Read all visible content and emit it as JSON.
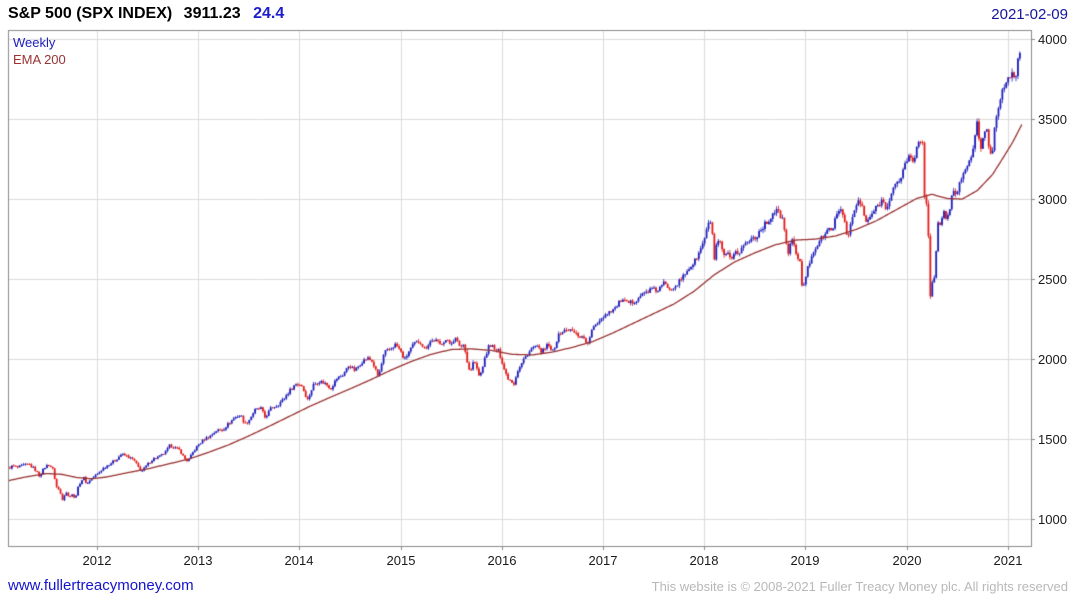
{
  "header": {
    "instrument": "S&P 500 (SPX INDEX)",
    "last": "3911.23",
    "change": "24.4",
    "date": "2021-02-09"
  },
  "legend": {
    "series1": "Weekly",
    "series2": "EMA 200"
  },
  "footer": {
    "site_link": "www.fullertreacymoney.com",
    "copyright": "This website is © 2008-2021 Fuller Treacy Money plc. All rights reserved"
  },
  "ui_colors": {
    "title": "#000000",
    "change": "#1d1dcf",
    "date": "#15159c",
    "link": "#1414cc",
    "copyright": "#b8b8b8",
    "tick_label": "#1a1a1a"
  },
  "chart_data": {
    "type": "candlestick",
    "title": "S&P 500 (SPX INDEX)",
    "interval": "Weekly",
    "overlay": "EMA 200",
    "last": 3911.23,
    "change": 24.4,
    "as_of": "2021-02-09",
    "legend": [
      "Weekly",
      "EMA 200"
    ],
    "legend_position": "top-left-inside",
    "grid": true,
    "x_ticks": [
      2012,
      2013,
      2014,
      2015,
      2016,
      2017,
      2018,
      2019,
      2020,
      2021
    ],
    "y_ticks": [
      1000,
      1500,
      2000,
      2500,
      3000,
      3500,
      4000
    ],
    "xlim": [
      2011.12,
      2021.23
    ],
    "ylim": [
      830,
      4055
    ],
    "candles_per_year": 52,
    "colors": {
      "up": "#2020bb",
      "down": "#e11b1b",
      "ema": "#993333",
      "grid": "#dcdcdc",
      "border": "#8a8a8a",
      "background": "#ffffff"
    },
    "price_anchors": [
      [
        2011.12,
        1315
      ],
      [
        2011.17,
        1332
      ],
      [
        2011.22,
        1320
      ],
      [
        2011.27,
        1335
      ],
      [
        2011.33,
        1340
      ],
      [
        2011.38,
        1312
      ],
      [
        2011.43,
        1268
      ],
      [
        2011.48,
        1320
      ],
      [
        2011.52,
        1340
      ],
      [
        2011.56,
        1316
      ],
      [
        2011.6,
        1200
      ],
      [
        2011.63,
        1175
      ],
      [
        2011.66,
        1120
      ],
      [
        2011.69,
        1175
      ],
      [
        2011.72,
        1135
      ],
      [
        2011.75,
        1160
      ],
      [
        2011.78,
        1122
      ],
      [
        2011.81,
        1190
      ],
      [
        2011.84,
        1238
      ],
      [
        2011.87,
        1255
      ],
      [
        2011.9,
        1216
      ],
      [
        2011.93,
        1244
      ],
      [
        2011.96,
        1258
      ],
      [
        2012.0,
        1278
      ],
      [
        2012.06,
        1315
      ],
      [
        2012.12,
        1342
      ],
      [
        2012.18,
        1365
      ],
      [
        2012.24,
        1404
      ],
      [
        2012.3,
        1390
      ],
      [
        2012.36,
        1370
      ],
      [
        2012.4,
        1330
      ],
      [
        2012.44,
        1295
      ],
      [
        2012.48,
        1325
      ],
      [
        2012.52,
        1355
      ],
      [
        2012.56,
        1376
      ],
      [
        2012.62,
        1390
      ],
      [
        2012.68,
        1418
      ],
      [
        2012.72,
        1460
      ],
      [
        2012.78,
        1440
      ],
      [
        2012.82,
        1428
      ],
      [
        2012.86,
        1380
      ],
      [
        2012.9,
        1360
      ],
      [
        2012.95,
        1418
      ],
      [
        2013.0,
        1462
      ],
      [
        2013.06,
        1498
      ],
      [
        2013.12,
        1518
      ],
      [
        2013.18,
        1552
      ],
      [
        2013.24,
        1556
      ],
      [
        2013.3,
        1595
      ],
      [
        2013.36,
        1633
      ],
      [
        2013.42,
        1650
      ],
      [
        2013.46,
        1592
      ],
      [
        2013.5,
        1615
      ],
      [
        2013.56,
        1680
      ],
      [
        2013.62,
        1690
      ],
      [
        2013.66,
        1632
      ],
      [
        2013.72,
        1692
      ],
      [
        2013.78,
        1710
      ],
      [
        2013.84,
        1745
      ],
      [
        2013.9,
        1798
      ],
      [
        2013.96,
        1842
      ],
      [
        2014.02,
        1838
      ],
      [
        2014.08,
        1742
      ],
      [
        2014.14,
        1840
      ],
      [
        2014.2,
        1860
      ],
      [
        2014.26,
        1845
      ],
      [
        2014.31,
        1815
      ],
      [
        2014.37,
        1878
      ],
      [
        2014.43,
        1900
      ],
      [
        2014.49,
        1960
      ],
      [
        2014.55,
        1925
      ],
      [
        2014.61,
        1978
      ],
      [
        2014.67,
        2005
      ],
      [
        2014.72,
        1982
      ],
      [
        2014.78,
        1885
      ],
      [
        2014.84,
        2040
      ],
      [
        2014.9,
        2063
      ],
      [
        2014.95,
        2090
      ],
      [
        2014.99,
        2058
      ],
      [
        2015.04,
        1994
      ],
      [
        2015.09,
        2055
      ],
      [
        2015.14,
        2097
      ],
      [
        2015.19,
        2110
      ],
      [
        2015.24,
        2060
      ],
      [
        2015.29,
        2108
      ],
      [
        2015.34,
        2118
      ],
      [
        2015.39,
        2090
      ],
      [
        2015.44,
        2120
      ],
      [
        2015.49,
        2095
      ],
      [
        2015.54,
        2128
      ],
      [
        2015.59,
        2076
      ],
      [
        2015.63,
        2092
      ],
      [
        2015.66,
        1972
      ],
      [
        2015.69,
        1913
      ],
      [
        2015.72,
        1988
      ],
      [
        2015.75,
        1948
      ],
      [
        2015.78,
        1880
      ],
      [
        2015.81,
        1952
      ],
      [
        2015.84,
        2015
      ],
      [
        2015.87,
        2077
      ],
      [
        2015.9,
        2089
      ],
      [
        2015.93,
        2048
      ],
      [
        2015.96,
        2060
      ],
      [
        2016.0,
        1990
      ],
      [
        2016.03,
        1922
      ],
      [
        2016.06,
        1880
      ],
      [
        2016.09,
        1865
      ],
      [
        2016.12,
        1845
      ],
      [
        2016.15,
        1918
      ],
      [
        2016.18,
        1950
      ],
      [
        2016.22,
        2000
      ],
      [
        2016.26,
        2035
      ],
      [
        2016.3,
        2066
      ],
      [
        2016.34,
        2080
      ],
      [
        2016.38,
        2048
      ],
      [
        2016.42,
        2052
      ],
      [
        2016.46,
        2096
      ],
      [
        2016.49,
        2037
      ],
      [
        2016.52,
        2070
      ],
      [
        2016.55,
        2130
      ],
      [
        2016.58,
        2165
      ],
      [
        2016.62,
        2175
      ],
      [
        2016.66,
        2184
      ],
      [
        2016.7,
        2170
      ],
      [
        2016.74,
        2152
      ],
      [
        2016.78,
        2140
      ],
      [
        2016.82,
        2128
      ],
      [
        2016.85,
        2085
      ],
      [
        2016.88,
        2165
      ],
      [
        2016.92,
        2205
      ],
      [
        2016.96,
        2240
      ],
      [
        2017.0,
        2265
      ],
      [
        2017.06,
        2295
      ],
      [
        2017.12,
        2316
      ],
      [
        2017.18,
        2368
      ],
      [
        2017.24,
        2345
      ],
      [
        2017.3,
        2355
      ],
      [
        2017.36,
        2390
      ],
      [
        2017.42,
        2415
      ],
      [
        2017.48,
        2435
      ],
      [
        2017.54,
        2425
      ],
      [
        2017.6,
        2472
      ],
      [
        2017.66,
        2440
      ],
      [
        2017.72,
        2460
      ],
      [
        2017.78,
        2500
      ],
      [
        2017.84,
        2560
      ],
      [
        2017.9,
        2600
      ],
      [
        2017.96,
        2675
      ],
      [
        2018.0,
        2745
      ],
      [
        2018.04,
        2835
      ],
      [
        2018.07,
        2870
      ],
      [
        2018.1,
        2620
      ],
      [
        2018.13,
        2735
      ],
      [
        2018.16,
        2715
      ],
      [
        2018.19,
        2645
      ],
      [
        2018.23,
        2655
      ],
      [
        2018.27,
        2605
      ],
      [
        2018.31,
        2670
      ],
      [
        2018.35,
        2665
      ],
      [
        2018.39,
        2715
      ],
      [
        2018.43,
        2725
      ],
      [
        2018.47,
        2755
      ],
      [
        2018.51,
        2760
      ],
      [
        2018.55,
        2800
      ],
      [
        2018.59,
        2835
      ],
      [
        2018.63,
        2855
      ],
      [
        2018.67,
        2900
      ],
      [
        2018.71,
        2930
      ],
      [
        2018.74,
        2905
      ],
      [
        2018.77,
        2885
      ],
      [
        2018.8,
        2770
      ],
      [
        2018.83,
        2660
      ],
      [
        2018.86,
        2735
      ],
      [
        2018.89,
        2725
      ],
      [
        2018.92,
        2630
      ],
      [
        2018.95,
        2595
      ],
      [
        2018.97,
        2415
      ],
      [
        2018.99,
        2485
      ],
      [
        2019.03,
        2580
      ],
      [
        2019.07,
        2665
      ],
      [
        2019.11,
        2705
      ],
      [
        2019.15,
        2745
      ],
      [
        2019.19,
        2775
      ],
      [
        2019.23,
        2805
      ],
      [
        2019.27,
        2825
      ],
      [
        2019.31,
        2890
      ],
      [
        2019.35,
        2940
      ],
      [
        2019.39,
        2860
      ],
      [
        2019.42,
        2750
      ],
      [
        2019.46,
        2875
      ],
      [
        2019.5,
        2950
      ],
      [
        2019.53,
        2995
      ],
      [
        2019.57,
        2930
      ],
      [
        2019.6,
        2845
      ],
      [
        2019.64,
        2890
      ],
      [
        2019.68,
        2925
      ],
      [
        2019.72,
        2960
      ],
      [
        2019.76,
        2995
      ],
      [
        2019.79,
        2950
      ],
      [
        2019.83,
        2985
      ],
      [
        2019.87,
        3065
      ],
      [
        2019.91,
        3095
      ],
      [
        2019.95,
        3145
      ],
      [
        2019.99,
        3230
      ],
      [
        2020.03,
        3265
      ],
      [
        2020.07,
        3225
      ],
      [
        2020.1,
        3330
      ],
      [
        2020.13,
        3385
      ],
      [
        2020.16,
        3340
      ],
      [
        2020.18,
        2955
      ],
      [
        2020.2,
        2970
      ],
      [
        2020.22,
        2710
      ],
      [
        2020.24,
        2280
      ],
      [
        2020.26,
        2540
      ],
      [
        2020.28,
        2490
      ],
      [
        2020.3,
        2790
      ],
      [
        2020.32,
        2875
      ],
      [
        2020.34,
        2835
      ],
      [
        2020.37,
        2930
      ],
      [
        2020.4,
        2865
      ],
      [
        2020.43,
        2955
      ],
      [
        2020.46,
        3045
      ],
      [
        2020.49,
        3010
      ],
      [
        2020.52,
        3100
      ],
      [
        2020.55,
        3130
      ],
      [
        2020.58,
        3185
      ],
      [
        2020.61,
        3215
      ],
      [
        2020.64,
        3270
      ],
      [
        2020.67,
        3350
      ],
      [
        2020.7,
        3480
      ],
      [
        2020.72,
        3340
      ],
      [
        2020.74,
        3320
      ],
      [
        2020.77,
        3420
      ],
      [
        2020.79,
        3465
      ],
      [
        2020.82,
        3270
      ],
      [
        2020.85,
        3310
      ],
      [
        2020.88,
        3510
      ],
      [
        2020.9,
        3560
      ],
      [
        2020.93,
        3640
      ],
      [
        2020.96,
        3695
      ],
      [
        2020.99,
        3715
      ],
      [
        2021.02,
        3760
      ],
      [
        2021.05,
        3825
      ],
      [
        2021.07,
        3715
      ],
      [
        2021.1,
        3870
      ],
      [
        2021.12,
        3911.23
      ]
    ],
    "ema_anchors": [
      [
        2011.12,
        1238
      ],
      [
        2011.3,
        1262
      ],
      [
        2011.5,
        1283
      ],
      [
        2011.65,
        1278
      ],
      [
        2011.8,
        1258
      ],
      [
        2011.95,
        1250
      ],
      [
        2012.1,
        1262
      ],
      [
        2012.3,
        1288
      ],
      [
        2012.5,
        1312
      ],
      [
        2012.7,
        1342
      ],
      [
        2012.9,
        1372
      ],
      [
        2013.1,
        1415
      ],
      [
        2013.3,
        1462
      ],
      [
        2013.5,
        1518
      ],
      [
        2013.7,
        1578
      ],
      [
        2013.9,
        1640
      ],
      [
        2014.1,
        1702
      ],
      [
        2014.3,
        1758
      ],
      [
        2014.5,
        1812
      ],
      [
        2014.7,
        1868
      ],
      [
        2014.9,
        1928
      ],
      [
        2015.1,
        1982
      ],
      [
        2015.3,
        2028
      ],
      [
        2015.5,
        2058
      ],
      [
        2015.7,
        2062
      ],
      [
        2015.9,
        2052
      ],
      [
        2016.1,
        2028
      ],
      [
        2016.3,
        2024
      ],
      [
        2016.5,
        2042
      ],
      [
        2016.7,
        2072
      ],
      [
        2016.9,
        2108
      ],
      [
        2017.1,
        2162
      ],
      [
        2017.3,
        2222
      ],
      [
        2017.5,
        2282
      ],
      [
        2017.7,
        2342
      ],
      [
        2017.9,
        2422
      ],
      [
        2018.1,
        2525
      ],
      [
        2018.3,
        2605
      ],
      [
        2018.5,
        2662
      ],
      [
        2018.7,
        2712
      ],
      [
        2018.9,
        2742
      ],
      [
        2019.1,
        2748
      ],
      [
        2019.3,
        2768
      ],
      [
        2019.5,
        2808
      ],
      [
        2019.7,
        2862
      ],
      [
        2019.9,
        2932
      ],
      [
        2020.1,
        3002
      ],
      [
        2020.25,
        3028
      ],
      [
        2020.4,
        3002
      ],
      [
        2020.55,
        2998
      ],
      [
        2020.7,
        3052
      ],
      [
        2020.85,
        3152
      ],
      [
        2020.95,
        3252
      ],
      [
        2021.05,
        3355
      ],
      [
        2021.14,
        3465
      ]
    ]
  }
}
